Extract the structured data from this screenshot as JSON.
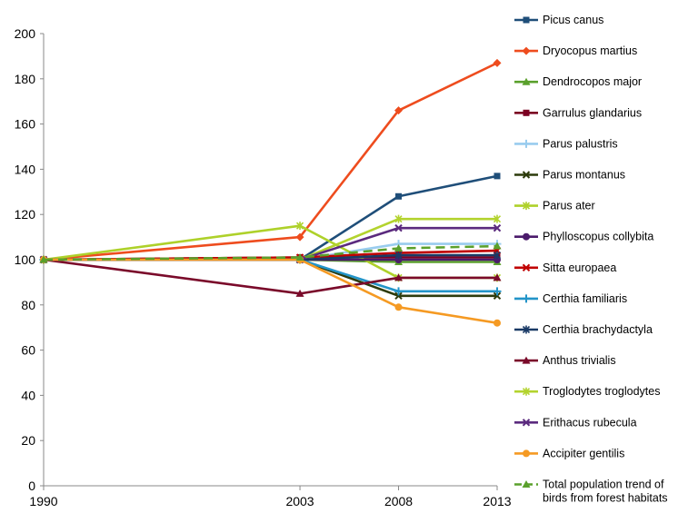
{
  "chart_data": {
    "type": "line",
    "title": "",
    "xlabel": "",
    "ylabel": "",
    "x": [
      "1990",
      "2003",
      "2008",
      "2013"
    ],
    "x_values": [
      1990,
      2003,
      2008,
      2013
    ],
    "ylim": [
      0,
      200
    ],
    "yticks": [
      "0",
      "20",
      "40",
      "60",
      "80",
      "100",
      "120",
      "140",
      "160",
      "180",
      "200"
    ],
    "grid": false,
    "legend_position": "right",
    "series": [
      {
        "name": "Picus canus",
        "values": [
          100,
          100,
          128,
          137
        ],
        "color": "#1f4e79",
        "marker": "square"
      },
      {
        "name": "Dryocopus martius",
        "values": [
          100,
          110,
          166,
          187
        ],
        "color": "#ee4c1e",
        "marker": "diamond"
      },
      {
        "name": "Dendrocopos major",
        "values": [
          100,
          100,
          99,
          99
        ],
        "color": "#5aa02c",
        "marker": "triangle"
      },
      {
        "name": "Garrulus glandarius",
        "values": [
          100,
          101,
          101,
          101
        ],
        "color": "#7b0022",
        "marker": "square"
      },
      {
        "name": "Parus palustris",
        "values": [
          100,
          100,
          107,
          107
        ],
        "color": "#99ccee",
        "marker": "plus"
      },
      {
        "name": "Parus montanus",
        "values": [
          100,
          100,
          84,
          84
        ],
        "color": "#2d3b0c",
        "marker": "x"
      },
      {
        "name": "Parus ater",
        "values": [
          100,
          115,
          92,
          92
        ],
        "color": "#aed12a",
        "marker": "star"
      },
      {
        "name": "Phylloscopus collybita",
        "values": [
          100,
          100,
          100,
          100
        ],
        "color": "#4b1b6b",
        "marker": "circle"
      },
      {
        "name": "Sitta europaea",
        "values": [
          100,
          101,
          103,
          104
        ],
        "color": "#c00000",
        "marker": "x"
      },
      {
        "name": "Certhia familiaris",
        "values": [
          100,
          100,
          86,
          86
        ],
        "color": "#2394c8",
        "marker": "plus"
      },
      {
        "name": "Certhia brachydactyla",
        "values": [
          100,
          100,
          102,
          102
        ],
        "color": "#1a3a66",
        "marker": "star"
      },
      {
        "name": "Anthus trivialis",
        "values": [
          100,
          85,
          92,
          92
        ],
        "color": "#7a0a2a",
        "marker": "triangle"
      },
      {
        "name": "Troglodytes troglodytes",
        "values": [
          100,
          100,
          118,
          118
        ],
        "color": "#b3d32e",
        "marker": "star"
      },
      {
        "name": "Erithacus rubecula",
        "values": [
          100,
          100,
          114,
          114
        ],
        "color": "#5b2a7e",
        "marker": "x"
      },
      {
        "name": "Accipiter gentilis",
        "values": [
          100,
          100,
          79,
          72
        ],
        "color": "#f59a23",
        "marker": "circle"
      },
      {
        "name": "Total population trend of birds from forest habitats",
        "values": [
          100,
          101,
          105,
          106
        ],
        "color": "#5aa02c",
        "marker": "triangle",
        "dashed": true,
        "legend_lines": [
          "Total population trend of",
          "birds from forest habitats"
        ]
      }
    ]
  }
}
